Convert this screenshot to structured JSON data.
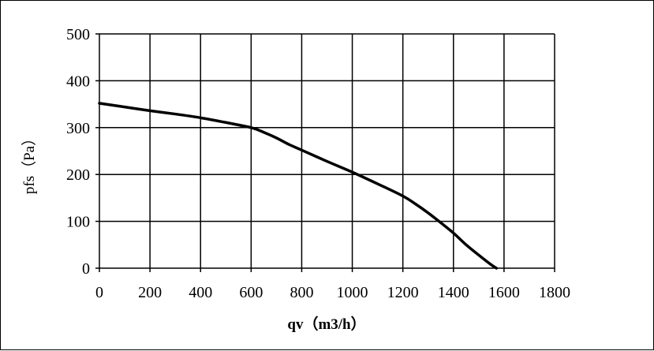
{
  "chart_data": {
    "type": "line",
    "xlabel": "qv（m3/h）",
    "ylabel": "pfs（Pa）",
    "xlim": [
      0,
      1800
    ],
    "ylim": [
      0,
      500
    ],
    "xticks": [
      0,
      200,
      400,
      600,
      800,
      1000,
      1200,
      1400,
      1600,
      1800
    ],
    "yticks": [
      0,
      100,
      200,
      300,
      400,
      500
    ],
    "grid": true,
    "series": [
      {
        "color": "#000000",
        "x": [
          0,
          100,
          200,
          300,
          400,
          500,
          600,
          650,
          700,
          750,
          800,
          900,
          1000,
          1100,
          1200,
          1250,
          1300,
          1350,
          1400,
          1450,
          1500,
          1550,
          1570
        ],
        "y": [
          352,
          344,
          336,
          329,
          321,
          311,
          300,
          290,
          278,
          264,
          252,
          228,
          205,
          180,
          154,
          137,
          118,
          97,
          75,
          50,
          28,
          7,
          0
        ]
      }
    ]
  }
}
